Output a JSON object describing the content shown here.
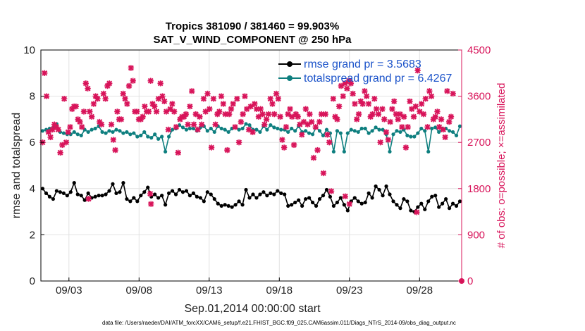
{
  "chart_data": {
    "type": "line",
    "title_line1": "Tropics 381090 / 381460 = 99.903%",
    "title_line2": "SAT_V_WIND_COMPONENT @ 250 hPa",
    "xlabel": "Sep.01,2014 00:00:00 start",
    "ylabel_left": "rmse and totalspread",
    "ylabel_right": "# of obs: o=possible; ×=assimilated",
    "xlim": [
      1,
      31
    ],
    "xticks": [
      3,
      8,
      13,
      18,
      23,
      28
    ],
    "xtick_labels": [
      "09/03",
      "09/08",
      "09/13",
      "09/18",
      "09/23",
      "09/28"
    ],
    "ylim_left": [
      0,
      10
    ],
    "yticks_left": [
      0,
      2,
      4,
      6,
      8,
      10
    ],
    "ytick_labels_left": [
      "0",
      "2",
      "4",
      "6",
      "8",
      "10"
    ],
    "ylim_right": [
      0,
      4500
    ],
    "yticks_right": [
      0,
      900,
      1800,
      2700,
      3600,
      4500
    ],
    "ytick_labels_right": [
      "0",
      "900",
      "1800",
      "2700",
      "3600",
      "4500"
    ],
    "grid": true,
    "legend_position": "top-right",
    "series": [
      {
        "name": "rmse grand pr = 3.5683",
        "axis": "left",
        "color": "#000000",
        "marker": "circle",
        "x": [
          1.125,
          1.375,
          1.625,
          1.875,
          2.125,
          2.375,
          2.625,
          2.875,
          3.125,
          3.375,
          3.625,
          3.875,
          4.125,
          4.375,
          4.625,
          4.875,
          5.125,
          5.375,
          5.625,
          5.875,
          6.125,
          6.375,
          6.625,
          6.875,
          7.125,
          7.375,
          7.625,
          7.875,
          8.125,
          8.375,
          8.625,
          8.875,
          9.125,
          9.375,
          9.625,
          9.875,
          10.125,
          10.375,
          10.625,
          10.875,
          11.125,
          11.375,
          11.625,
          11.875,
          12.125,
          12.375,
          12.625,
          12.875,
          13.125,
          13.375,
          13.625,
          13.875,
          14.125,
          14.375,
          14.625,
          14.875,
          15.125,
          15.375,
          15.625,
          15.875,
          16.125,
          16.375,
          16.625,
          16.875,
          17.125,
          17.375,
          17.625,
          17.875,
          18.125,
          18.375,
          18.625,
          18.875,
          19.125,
          19.375,
          19.625,
          19.875,
          20.125,
          20.375,
          20.625,
          20.875,
          21.125,
          21.375,
          21.625,
          21.875,
          22.125,
          22.375,
          22.625,
          22.875,
          23.125,
          23.375,
          23.625,
          23.875,
          24.125,
          24.375,
          24.625,
          24.875,
          25.125,
          25.375,
          25.625,
          25.875,
          26.125,
          26.375,
          26.625,
          26.875,
          27.125,
          27.375,
          27.625,
          27.875,
          28.125,
          28.375,
          28.625,
          28.875,
          29.125,
          29.375,
          29.625,
          29.875,
          30.125,
          30.375,
          30.625,
          30.875
        ],
        "values": [
          4.0,
          3.8,
          3.65,
          3.55,
          3.9,
          3.85,
          3.8,
          3.7,
          3.85,
          4.25,
          3.75,
          3.7,
          3.5,
          3.8,
          3.6,
          3.65,
          3.7,
          3.7,
          3.75,
          3.9,
          4.2,
          3.8,
          3.85,
          4.25,
          3.55,
          3.45,
          3.6,
          3.45,
          3.7,
          3.85,
          4.05,
          3.65,
          3.75,
          3.6,
          3.7,
          3.3,
          3.8,
          3.9,
          3.75,
          3.95,
          3.85,
          3.9,
          3.7,
          3.8,
          3.65,
          3.6,
          3.45,
          3.85,
          3.75,
          3.55,
          3.35,
          3.25,
          3.3,
          3.25,
          3.2,
          3.3,
          3.45,
          3.3,
          3.95,
          3.6,
          3.75,
          3.6,
          3.75,
          3.85,
          3.7,
          3.8,
          3.75,
          3.9,
          3.8,
          3.75,
          3.25,
          3.3,
          3.4,
          3.5,
          3.25,
          3.55,
          3.6,
          3.4,
          3.25,
          3.55,
          3.7,
          3.95,
          3.65,
          3.25,
          3.4,
          3.6,
          3.3,
          3.05,
          3.45,
          3.6,
          3.45,
          3.35,
          3.4,
          3.8,
          3.6,
          4.1,
          3.95,
          3.7,
          4.1,
          3.75,
          3.45,
          3.3,
          3.15,
          3.55,
          3.45,
          3.05,
          3.0,
          3.2,
          3.35,
          3.1,
          3.45,
          3.65,
          3.7,
          3.2,
          3.35,
          3.55,
          3.15,
          3.35,
          3.25,
          3.45
        ],
        "labels": [],
        "note": "daily-quarter samples"
      },
      {
        "name": "totalspread grand pr = 6.4267",
        "axis": "left",
        "color": "#0e7f7f",
        "marker": "circle",
        "values": [
          6.5,
          6.55,
          6.6,
          6.65,
          6.8,
          6.45,
          6.4,
          6.35,
          6.35,
          6.45,
          6.35,
          6.3,
          6.55,
          6.45,
          6.55,
          6.6,
          6.7,
          6.45,
          6.4,
          6.5,
          6.45,
          6.55,
          6.5,
          6.4,
          6.45,
          6.35,
          6.4,
          6.25,
          6.3,
          6.45,
          6.25,
          6.2,
          6.35,
          6.15,
          6.25,
          5.6,
          6.25,
          6.55,
          6.6,
          6.75,
          6.65,
          6.55,
          6.6,
          6.6,
          6.5,
          6.65,
          6.7,
          6.5,
          6.6,
          6.45,
          6.7,
          6.6,
          6.55,
          6.45,
          6.6,
          6.65,
          6.55,
          6.6,
          6.8,
          6.75,
          6.55,
          6.55,
          6.45,
          6.7,
          6.55,
          6.75,
          6.65,
          6.6,
          6.55,
          6.55,
          6.45,
          6.6,
          6.5,
          6.7,
          6.45,
          6.5,
          6.4,
          6.35,
          6.65,
          6.5,
          6.3,
          6.55,
          6.4,
          5.6,
          6.5,
          6.4,
          5.6,
          6.4,
          6.55,
          6.5,
          6.45,
          6.6,
          6.6,
          6.4,
          6.5,
          6.65,
          6.55,
          6.55,
          6.35,
          5.6,
          6.35,
          6.5,
          6.45,
          6.55,
          6.3,
          6.25,
          6.25,
          6.4,
          6.6,
          6.5,
          5.6,
          6.6,
          6.65,
          6.45,
          6.6,
          6.6,
          6.5,
          6.45,
          6.3,
          6.7
        ]
      },
      {
        "name": "obs assimilated",
        "axis": "right",
        "color": "#d8145a",
        "marker": "x",
        "values": [
          2700,
          4050,
          3600,
          2900,
          2800,
          2950,
          3050,
          3000,
          2950,
          2500,
          2650,
          3550,
          2700,
          2900,
          3000,
          3350,
          3400,
          3400,
          3150,
          3100,
          3000,
          3300,
          3850,
          3750,
          3300,
          3200,
          3450,
          3600,
          3550,
          3100,
          3050,
          3650,
          3550,
          3800,
          3850,
          3050,
          2750,
          2550,
          3300,
          3150,
          3150,
          3650,
          3550,
          3450,
          3800,
          4150,
          3900,
          3300,
          3300,
          3150,
          3150,
          3200,
          3400,
          3300,
          3300,
          3900,
          3450,
          3400,
          3300,
          3550,
          3850,
          3600,
          3500,
          3300,
          2950,
          3350,
          3450,
          3300,
          3000,
          2500,
          3150,
          3200,
          3200,
          3250,
          3050,
          3400,
          3700,
          3050,
          3250,
          2950,
          3200,
          3050,
          3550,
          3300,
          3650,
          3350,
          2600,
          3550,
          3050,
          3250,
          3300,
          3600,
          3450,
          3250,
          2550,
          3250,
          3350,
          3450,
          3000,
          3550,
          2700,
          3100,
          3250,
          3600,
          3350,
          2950,
          3400,
          2900,
          3450,
          3350,
          3200,
          3350,
          3250,
          3050,
          3150,
          3250,
          3550,
          3450,
          3250,
          3650,
          3550,
          3200,
          2750,
          2600,
          3000,
          3250,
          3350,
          3200,
          2650,
          3250,
          3200,
          3050,
          2850,
          3100,
          3350,
          3050,
          3250,
          3100,
          2400,
          3000,
          2550,
          3100,
          3250,
          2100,
          3250,
          2850,
          2700,
          1750,
          3550,
          3200,
          3150,
          3400,
          3800,
          3600,
          3850,
          3750,
          3900,
          3850,
          3650,
          3450,
          3150,
          3250,
          3500,
          3450,
          3700,
          3600,
          3450,
          3200,
          3250,
          3550,
          3350,
          3250,
          2700,
          3350,
          3150,
          2900,
          2750,
          3100,
          3350,
          3500,
          3250,
          3150,
          3250,
          3000,
          3200,
          2600,
          3000,
          3500,
          3350,
          3200,
          3400,
          4100,
          3300,
          3450,
          3250,
          3550,
          3000,
          3700,
          3600,
          3150,
          3200,
          3300,
          3000,
          3150,
          2950,
          2800,
          3700,
          3100,
          3200,
          3650,
          0
        ],
        "x_start": 1.125,
        "x_step": 0.14
      }
    ],
    "extra_marks": [
      {
        "name": "assimilated-low-outliers",
        "x": [
          4.4,
          8.8,
          8.85,
          22.7,
          23.0,
          27.8
        ],
        "values": [
          1600,
          1700,
          1500,
          1650,
          1500,
          1340
        ]
      }
    ]
  },
  "footnote": "data file: /Users/raeder/DAI/ATM_forcXX/CAM6_setup/f.e21.FHIST_BGC.f09_025.CAM6assim.011/Diags_NTrS_2014-09/obs_diag_output.nc",
  "colors": {
    "rmse": "#000000",
    "spread": "#0e7f7f",
    "obs": "#d8145a",
    "legend_text": "#1a52c9"
  }
}
